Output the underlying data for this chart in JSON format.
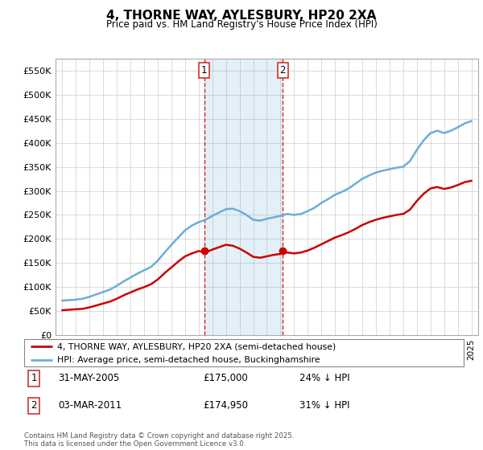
{
  "title": "4, THORNE WAY, AYLESBURY, HP20 2XA",
  "subtitle": "Price paid vs. HM Land Registry's House Price Index (HPI)",
  "ylim": [
    0,
    575000
  ],
  "yticks": [
    0,
    50000,
    100000,
    150000,
    200000,
    250000,
    300000,
    350000,
    400000,
    450000,
    500000,
    550000
  ],
  "ytick_labels": [
    "£0",
    "£50K",
    "£100K",
    "£150K",
    "£200K",
    "£250K",
    "£300K",
    "£350K",
    "£400K",
    "£450K",
    "£500K",
    "£550K"
  ],
  "sale1_date": "31-MAY-2005",
  "sale1_price": 175000,
  "sale1_year": 2005.41,
  "sale2_date": "03-MAR-2011",
  "sale2_price": 174950,
  "sale2_year": 2011.17,
  "legend_line1": "4, THORNE WAY, AYLESBURY, HP20 2XA (semi-detached house)",
  "legend_line2": "HPI: Average price, semi-detached house, Buckinghamshire",
  "footer": "Contains HM Land Registry data © Crown copyright and database right 2025.\nThis data is licensed under the Open Government Licence v3.0.",
  "red_color": "#cc0000",
  "blue_color": "#6baed6",
  "hpi_years": [
    1995,
    1995.5,
    1996,
    1996.5,
    1997,
    1997.5,
    1998,
    1998.5,
    1999,
    1999.5,
    2000,
    2000.5,
    2001,
    2001.5,
    2002,
    2002.5,
    2003,
    2003.5,
    2004,
    2004.5,
    2005,
    2005.5,
    2006,
    2006.5,
    2007,
    2007.5,
    2008,
    2008.5,
    2009,
    2009.5,
    2010,
    2010.5,
    2011,
    2011.5,
    2012,
    2012.5,
    2013,
    2013.5,
    2014,
    2014.5,
    2015,
    2015.5,
    2016,
    2016.5,
    2017,
    2017.5,
    2018,
    2018.5,
    2019,
    2019.5,
    2020,
    2020.5,
    2021,
    2021.5,
    2022,
    2022.5,
    2023,
    2023.5,
    2024,
    2024.5,
    2025
  ],
  "hpi_values": [
    72000,
    73000,
    74000,
    76000,
    80000,
    85000,
    90000,
    95000,
    103000,
    112000,
    120000,
    128000,
    135000,
    142000,
    155000,
    172000,
    188000,
    203000,
    218000,
    228000,
    235000,
    240000,
    248000,
    255000,
    262000,
    263000,
    258000,
    250000,
    240000,
    238000,
    242000,
    245000,
    248000,
    252000,
    250000,
    252000,
    258000,
    265000,
    275000,
    283000,
    292000,
    298000,
    305000,
    315000,
    325000,
    332000,
    338000,
    342000,
    345000,
    348000,
    350000,
    362000,
    385000,
    405000,
    420000,
    425000,
    420000,
    425000,
    432000,
    440000,
    445000
  ],
  "red_years": [
    1995,
    1995.5,
    1996,
    1996.5,
    1997,
    1997.5,
    1998,
    1998.5,
    1999,
    1999.5,
    2000,
    2000.5,
    2001,
    2001.5,
    2002,
    2002.5,
    2003,
    2003.5,
    2004,
    2004.5,
    2005,
    2005.5,
    2006,
    2006.5,
    2007,
    2007.5,
    2008,
    2008.5,
    2009,
    2009.5,
    2010,
    2010.5,
    2011,
    2011.5,
    2012,
    2012.5,
    2013,
    2013.5,
    2014,
    2014.5,
    2015,
    2015.5,
    2016,
    2016.5,
    2017,
    2017.5,
    2018,
    2018.5,
    2019,
    2019.5,
    2020,
    2020.5,
    2021,
    2021.5,
    2022,
    2022.5,
    2023,
    2023.5,
    2024,
    2024.5,
    2025
  ],
  "red_values": [
    52000,
    53000,
    54000,
    55000,
    58000,
    62000,
    66000,
    70000,
    76000,
    83000,
    89000,
    95000,
    100000,
    106000,
    116000,
    129000,
    141000,
    153000,
    164000,
    170000,
    175000,
    172000,
    178000,
    183000,
    188000,
    186000,
    180000,
    172000,
    163000,
    161000,
    164000,
    167000,
    169000,
    172000,
    170000,
    172000,
    176000,
    182000,
    189000,
    196000,
    203000,
    208000,
    214000,
    221000,
    229000,
    235000,
    240000,
    244000,
    247000,
    250000,
    252000,
    261000,
    279000,
    294000,
    305000,
    308000,
    304000,
    307000,
    312000,
    318000,
    321000
  ],
  "xlim_left": 1994.5,
  "xlim_right": 2025.5,
  "xticks": [
    1995,
    1996,
    1997,
    1998,
    1999,
    2000,
    2001,
    2002,
    2003,
    2004,
    2005,
    2006,
    2007,
    2008,
    2009,
    2010,
    2011,
    2012,
    2013,
    2014,
    2015,
    2016,
    2017,
    2018,
    2019,
    2020,
    2021,
    2022,
    2023,
    2024,
    2025
  ]
}
